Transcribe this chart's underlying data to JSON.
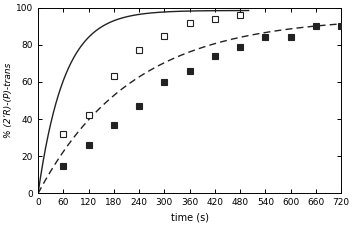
{
  "title": "",
  "xlabel": "time (s)",
  "ylabel": "% (2’R)-(P)-trans",
  "xlim": [
    0,
    720
  ],
  "ylim": [
    0,
    100
  ],
  "xticks": [
    0,
    60,
    120,
    180,
    240,
    300,
    360,
    420,
    480,
    540,
    600,
    660,
    720
  ],
  "yticks": [
    0,
    20,
    40,
    60,
    80,
    100
  ],
  "open_squares_x": [
    60,
    120,
    180,
    240,
    300,
    360,
    420,
    480
  ],
  "open_squares_y": [
    32,
    42,
    63,
    77,
    85,
    92,
    94,
    96
  ],
  "filled_squares_x": [
    60,
    120,
    180,
    240,
    300,
    360,
    420,
    480,
    540,
    600,
    660,
    720
  ],
  "filled_squares_y": [
    15,
    26,
    37,
    47,
    60,
    66,
    74,
    79,
    84,
    84,
    90,
    90
  ],
  "line_color": "#222222",
  "k_solid": 0.016,
  "plateau_solid": 98.5,
  "t_solid_end": 500,
  "k_dashed": 0.0045,
  "plateau_dashed": 95,
  "t_dashed_end": 720
}
